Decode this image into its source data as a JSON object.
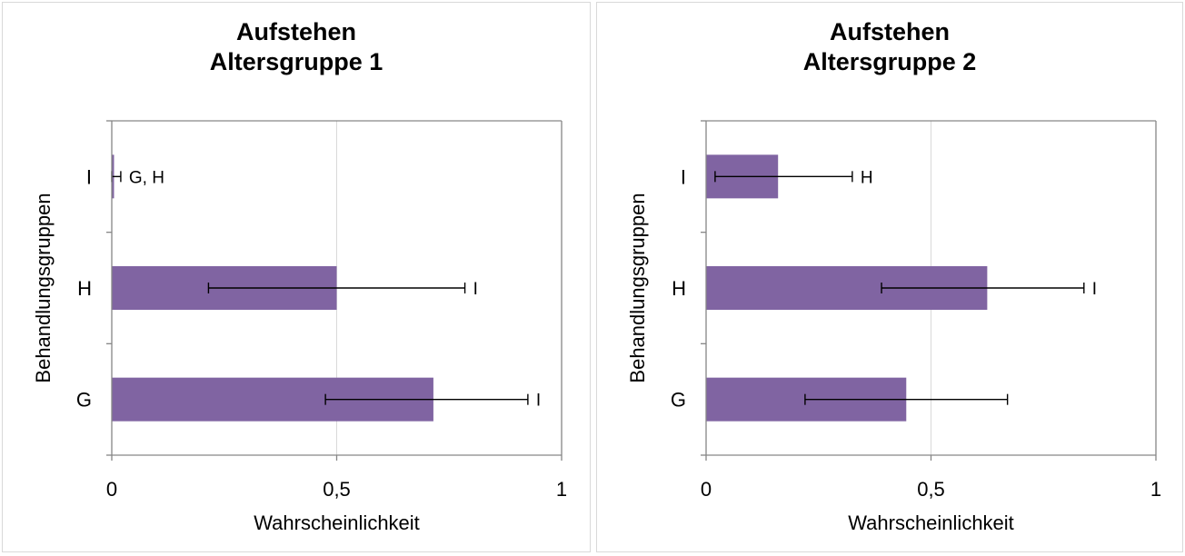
{
  "chart_data": [
    {
      "type": "bar",
      "orientation": "horizontal",
      "title": [
        "Aufstehen",
        "Altersgruppe 1"
      ],
      "xlabel": "Wahrscheinlichkeit",
      "ylabel": "Behandlungsgruppen",
      "categories": [
        "I",
        "H",
        "G"
      ],
      "values": [
        0.005,
        0.5,
        0.715
      ],
      "error_low": [
        0.0,
        0.215,
        0.475
      ],
      "error_high": [
        0.02,
        0.785,
        0.925
      ],
      "annotations": [
        "G, H",
        "I",
        "I"
      ],
      "xlim": [
        0,
        1
      ],
      "xticks": [
        {
          "v": 0,
          "label": "0"
        },
        {
          "v": 0.5,
          "label": "0,5"
        },
        {
          "v": 1,
          "label": "1"
        }
      ],
      "grid": "vertical",
      "bar_color": "#8064a2"
    },
    {
      "type": "bar",
      "orientation": "horizontal",
      "title": [
        "Aufstehen",
        "Altersgruppe 2"
      ],
      "xlabel": "Wahrscheinlichkeit",
      "ylabel": "Behandlungsgruppen",
      "categories": [
        "I",
        "H",
        "G"
      ],
      "values": [
        0.16,
        0.625,
        0.445
      ],
      "error_low": [
        0.02,
        0.39,
        0.22
      ],
      "error_high": [
        0.325,
        0.84,
        0.67
      ],
      "annotations": [
        "H",
        "I",
        ""
      ],
      "xlim": [
        0,
        1
      ],
      "xticks": [
        {
          "v": 0,
          "label": "0"
        },
        {
          "v": 0.5,
          "label": "0,5"
        },
        {
          "v": 1,
          "label": "1"
        }
      ],
      "grid": "vertical",
      "bar_color": "#8064a2"
    }
  ]
}
